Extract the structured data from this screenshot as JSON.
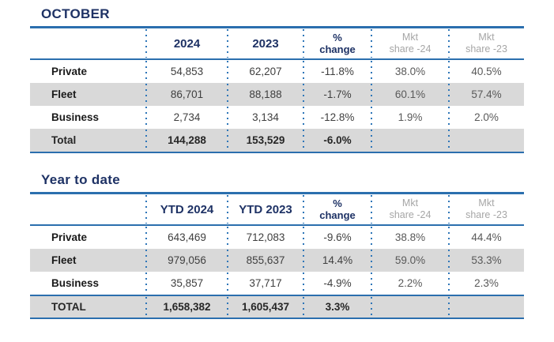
{
  "colors": {
    "accent_navy": "#1e3265",
    "line_blue": "#2b6fae",
    "dot_blue": "#2e76b8",
    "stripe_gray": "#d9d9d9",
    "muted_gray": "#a6a6a6"
  },
  "october": {
    "title": "OCTOBER",
    "header": {
      "label": "",
      "col1": "2024",
      "col2": "2023",
      "pct_line1": "%",
      "pct_line2": "change",
      "mkt24_line1": "Mkt",
      "mkt24_line2": "share -24",
      "mkt23_line1": "Mkt",
      "mkt23_line2": "share -23"
    },
    "rows": [
      {
        "label": "Private",
        "v1": "54,853",
        "v2": "62,207",
        "pct": "-11.8%",
        "m24": "38.0%",
        "m23": "40.5%"
      },
      {
        "label": "Fleet",
        "v1": "86,701",
        "v2": "88,188",
        "pct": "-1.7%",
        "m24": "60.1%",
        "m23": "57.4%"
      },
      {
        "label": "Business",
        "v1": "2,734",
        "v2": "3,134",
        "pct": "-12.8%",
        "m24": "1.9%",
        "m23": "2.0%"
      },
      {
        "label": "Total",
        "v1": "144,288",
        "v2": "153,529",
        "pct": "-6.0%",
        "m24": "",
        "m23": ""
      }
    ]
  },
  "ytd": {
    "title": "Year to date",
    "header": {
      "label": "",
      "col1": "YTD 2024",
      "col2": "YTD 2023",
      "pct_line1": "%",
      "pct_line2": "change",
      "mkt24_line1": "Mkt",
      "mkt24_line2": "share -24",
      "mkt23_line1": "Mkt",
      "mkt23_line2": "share -23"
    },
    "rows": [
      {
        "label": "Private",
        "v1": "643,469",
        "v2": "712,083",
        "pct": "-9.6%",
        "m24": "38.8%",
        "m23": "44.4%"
      },
      {
        "label": "Fleet",
        "v1": "979,056",
        "v2": "855,637",
        "pct": "14.4%",
        "m24": "59.0%",
        "m23": "53.3%"
      },
      {
        "label": "Business",
        "v1": "35,857",
        "v2": "37,717",
        "pct": "-4.9%",
        "m24": "2.2%",
        "m23": "2.3%"
      },
      {
        "label": "TOTAL",
        "v1": "1,658,382",
        "v2": "1,605,437",
        "pct": "3.3%",
        "m24": "",
        "m23": ""
      }
    ]
  },
  "chart_data": [
    {
      "type": "table",
      "title": "OCTOBER",
      "columns": [
        "",
        "2024",
        "2023",
        "% change",
        "Mkt share -24",
        "Mkt share -23"
      ],
      "rows": [
        [
          "Private",
          54853,
          62207,
          "-11.8%",
          "38.0%",
          "40.5%"
        ],
        [
          "Fleet",
          86701,
          88188,
          "-1.7%",
          "60.1%",
          "57.4%"
        ],
        [
          "Business",
          2734,
          3134,
          "-12.8%",
          "1.9%",
          "2.0%"
        ],
        [
          "Total",
          144288,
          153529,
          "-6.0%",
          null,
          null
        ]
      ]
    },
    {
      "type": "table",
      "title": "Year to date",
      "columns": [
        "",
        "YTD 2024",
        "YTD 2023",
        "% change",
        "Mkt share -24",
        "Mkt share -23"
      ],
      "rows": [
        [
          "Private",
          643469,
          712083,
          "-9.6%",
          "38.8%",
          "44.4%"
        ],
        [
          "Fleet",
          979056,
          855637,
          "14.4%",
          "59.0%",
          "53.3%"
        ],
        [
          "Business",
          35857,
          37717,
          "-4.9%",
          "2.2%",
          "2.3%"
        ],
        [
          "TOTAL",
          1658382,
          1605437,
          "3.3%",
          null,
          null
        ]
      ]
    }
  ]
}
